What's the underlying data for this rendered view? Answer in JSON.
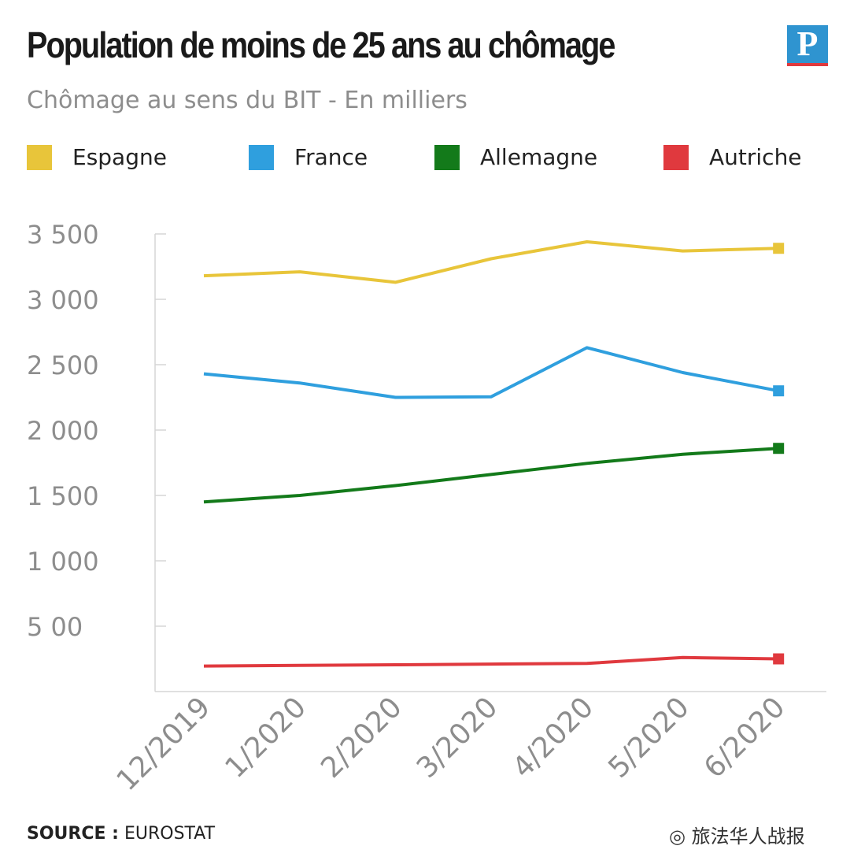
{
  "header": {
    "title": "Population de moins de 25 ans au chômage",
    "subtitle": "Chômage au sens du BIT - En milliers",
    "logo_letter": "P"
  },
  "footer": {
    "source_label": "SOURCE :",
    "source_value": "EUROSTAT",
    "watermark": "◎ 旅法华人战报"
  },
  "chart_data": {
    "type": "line",
    "categories": [
      "12/2019",
      "1/2020",
      "2/2020",
      "3/2020",
      "4/2020",
      "5/2020",
      "6/2020"
    ],
    "ylim": [
      0,
      3500
    ],
    "yticks": [
      500,
      1000,
      1500,
      2000,
      2500,
      3000,
      3500
    ],
    "ytick_labels": [
      "5 00",
      "1 000",
      "1 500",
      "2 000",
      "2 500",
      "3 000",
      "3 500"
    ],
    "grid": false,
    "legend_position": "top",
    "series": [
      {
        "name": "Espagne",
        "color": "#e8c53a",
        "values": [
          3180,
          3210,
          3130,
          3310,
          3440,
          3370,
          3390
        ]
      },
      {
        "name": "France",
        "color": "#2f9fde",
        "values": [
          2430,
          2360,
          2250,
          2255,
          2630,
          2440,
          2300
        ]
      },
      {
        "name": "Allemagne",
        "color": "#137a1a",
        "values": [
          1450,
          1500,
          1575,
          1660,
          1745,
          1815,
          1860
        ]
      },
      {
        "name": "Autriche",
        "color": "#e0393e",
        "values": [
          195,
          200,
          205,
          210,
          215,
          260,
          250
        ]
      }
    ]
  }
}
